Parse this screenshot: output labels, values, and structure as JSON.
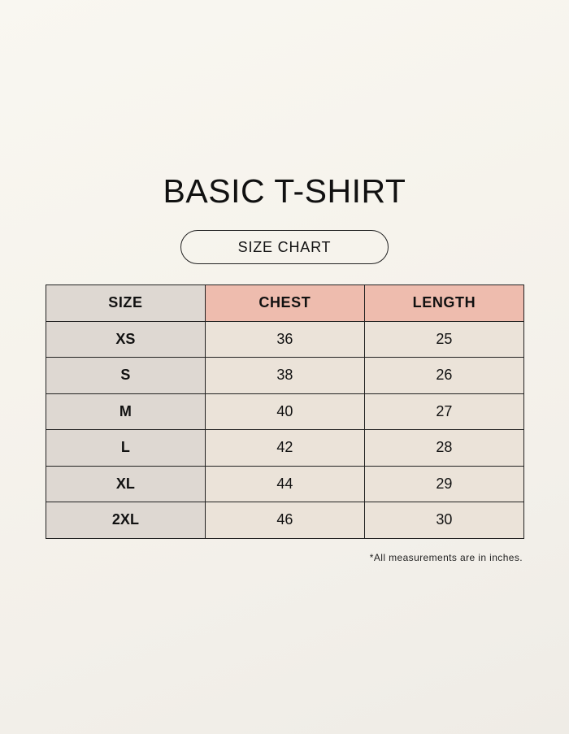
{
  "title": "BASIC T-SHIRT",
  "subtitle": "SIZE CHART",
  "colors": {
    "header_highlight": "#eebcae",
    "size_column": "#ded8d2",
    "cell": "#ebe3d9"
  },
  "table": {
    "headers": [
      "SIZE",
      "CHEST",
      "LENGTH"
    ],
    "rows": [
      [
        "XS",
        "36",
        "25"
      ],
      [
        "S",
        "38",
        "26"
      ],
      [
        "M",
        "40",
        "27"
      ],
      [
        "L",
        "42",
        "28"
      ],
      [
        "XL",
        "44",
        "29"
      ],
      [
        "2XL",
        "46",
        "30"
      ]
    ]
  },
  "note": "*All measurements are in inches."
}
